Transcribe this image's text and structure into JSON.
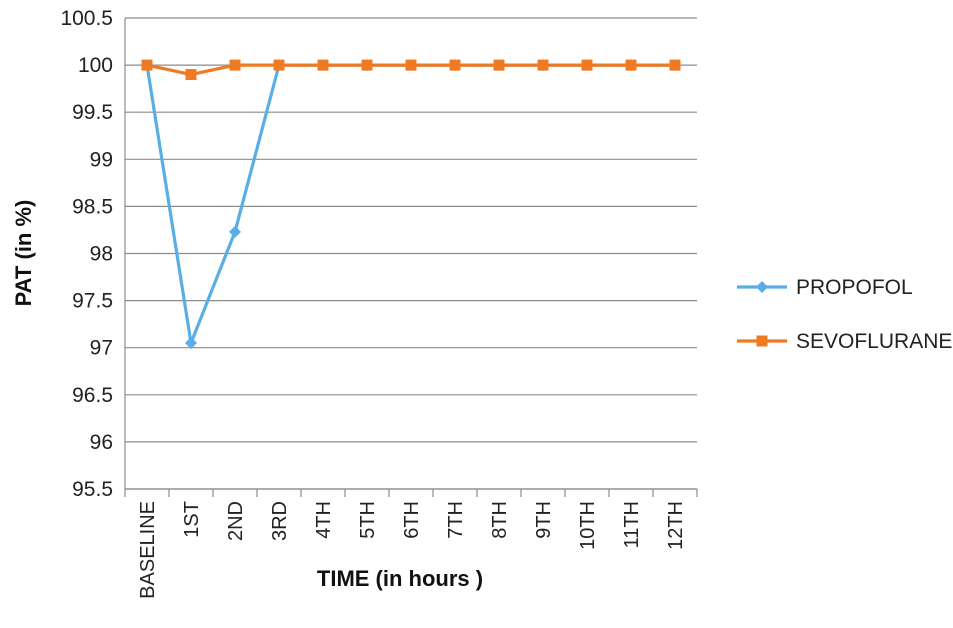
{
  "chart_data": {
    "type": "line",
    "title": "",
    "xlabel": "TIME (in hours )",
    "ylabel": "PAT (in %)",
    "categories": [
      "BASELINE",
      "1ST",
      "2ND",
      "3RD",
      "4TH",
      "5TH",
      "6TH",
      "7TH",
      "8TH",
      "9TH",
      "10TH",
      "11TH",
      "12TH"
    ],
    "ylim": [
      95.5,
      100.5
    ],
    "yticks": [
      "95.5",
      "96",
      "96.5",
      "97",
      "97.5",
      "98",
      "98.5",
      "99",
      "99.5",
      "100",
      "100.5"
    ],
    "grid": true,
    "legend_position": "right",
    "series": [
      {
        "name": "PROPOFOL",
        "color": "#5aaee6",
        "marker": "diamond",
        "values": [
          100,
          97.05,
          98.23,
          100,
          100,
          100,
          100,
          100,
          100,
          100,
          100,
          100,
          100
        ]
      },
      {
        "name": "SEVOFLURANE",
        "color": "#f07a22",
        "marker": "square",
        "values": [
          100,
          99.9,
          100,
          100,
          100,
          100,
          100,
          100,
          100,
          100,
          100,
          100,
          100
        ]
      }
    ]
  }
}
